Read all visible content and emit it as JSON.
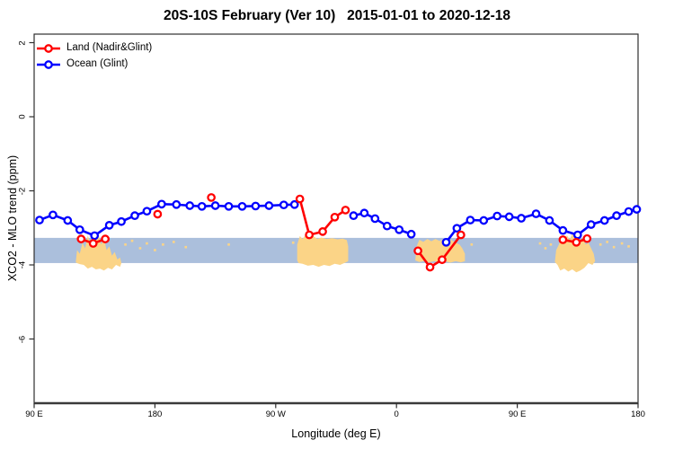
{
  "title": "20S-10S February (Ver 10)   2015-01-01 to 2020-12-18",
  "chart_data": {
    "type": "line",
    "title": "20S-10S February (Ver 10)   2015-01-01 to 2020-12-18",
    "xlabel": "Longitude (deg E)",
    "ylabel": "XCO2 - MLO trend (ppm)",
    "x_axis": {
      "note": "longitude axis starts at 90E and wraps eastward through 180, 90W, 0, 90E to 180; stored x values are degrees east of 90E (0-450)",
      "range_deg": [
        0,
        450
      ],
      "ticks_deg": [
        0,
        90,
        180,
        270,
        360,
        450
      ],
      "tick_labels": [
        "90 E",
        "180",
        "90 W",
        "0",
        "90 E",
        "180"
      ]
    },
    "y_axis": {
      "range": [
        -7.73,
        2.23
      ],
      "ticks": [
        2,
        0,
        -2,
        -4,
        -6
      ],
      "tick_labels": [
        "2",
        "0",
        "-2",
        "-4",
        "-6"
      ]
    },
    "grid": "off",
    "legend_position": "top-left inside, no box",
    "legend": [
      {
        "label": "Land (Nadir&Glint)",
        "color": "#ff0000"
      },
      {
        "label": "Ocean (Glint)",
        "color": "#0000ff"
      }
    ],
    "band": {
      "color": "#abbfdc",
      "y_top": -3.27,
      "y_bottom": -3.95
    },
    "land_fill_color": "#fbd487",
    "series": [
      {
        "name": "Land (Nadir&Glint)",
        "color": "#ff0000",
        "marker": "open-circle",
        "segments": [
          [
            [
              35,
              -3.3
            ],
            [
              44,
              -3.42
            ],
            [
              53,
              -3.3
            ]
          ],
          [
            [
              92,
              -2.63
            ]
          ],
          [
            [
              132,
              -2.18
            ]
          ],
          [
            [
              198,
              -2.22
            ],
            [
              205,
              -3.19
            ],
            [
              215,
              -3.1
            ],
            [
              224,
              -2.71
            ],
            [
              232,
              -2.52
            ]
          ],
          [
            [
              286,
              -3.62
            ],
            [
              295,
              -4.06
            ],
            [
              304,
              -3.86
            ],
            [
              318,
              -3.19
            ]
          ],
          [
            [
              394,
              -3.32
            ],
            [
              404,
              -3.39
            ],
            [
              412,
              -3.29
            ]
          ]
        ]
      },
      {
        "name": "Ocean (Glint)",
        "color": "#0000ff",
        "marker": "open-circle",
        "segments": [
          [
            [
              4,
              -2.79
            ],
            [
              14,
              -2.65
            ],
            [
              25,
              -2.8
            ],
            [
              34,
              -3.05
            ],
            [
              45,
              -3.21
            ],
            [
              56,
              -2.93
            ],
            [
              65,
              -2.83
            ],
            [
              75,
              -2.67
            ],
            [
              84,
              -2.55
            ],
            [
              95,
              -2.36
            ],
            [
              106,
              -2.37
            ],
            [
              116,
              -2.4
            ],
            [
              125,
              -2.42
            ],
            [
              135,
              -2.4
            ],
            [
              145,
              -2.42
            ],
            [
              155,
              -2.42
            ],
            [
              165,
              -2.41
            ],
            [
              175,
              -2.4
            ],
            [
              186,
              -2.38
            ],
            [
              194,
              -2.37
            ]
          ],
          [
            [
              238,
              -2.67
            ],
            [
              246,
              -2.6
            ],
            [
              254,
              -2.75
            ],
            [
              263,
              -2.95
            ],
            [
              272,
              -3.05
            ],
            [
              281,
              -3.17
            ]
          ],
          [
            [
              307,
              -3.39
            ],
            [
              315,
              -3.01
            ],
            [
              325,
              -2.79
            ],
            [
              335,
              -2.8
            ],
            [
              345,
              -2.68
            ],
            [
              354,
              -2.7
            ],
            [
              363,
              -2.74
            ],
            [
              374,
              -2.62
            ],
            [
              384,
              -2.8
            ],
            [
              394,
              -3.07
            ],
            [
              405,
              -3.19
            ],
            [
              415,
              -2.91
            ],
            [
              425,
              -2.8
            ],
            [
              434,
              -2.67
            ],
            [
              443,
              -2.56
            ],
            [
              449,
              -2.5
            ]
          ]
        ]
      }
    ],
    "land_regions": [
      [
        [
          31,
          -3.93
        ],
        [
          32,
          -3.6
        ],
        [
          34,
          -3.7
        ],
        [
          36,
          -3.4
        ],
        [
          38,
          -3.55
        ],
        [
          40,
          -3.2
        ],
        [
          42,
          -3.45
        ],
        [
          44,
          -3.1
        ],
        [
          46,
          -3.35
        ],
        [
          48,
          -3.2
        ],
        [
          50,
          -3.45
        ],
        [
          52,
          -3.3
        ],
        [
          54,
          -3.6
        ],
        [
          56,
          -3.5
        ],
        [
          58,
          -3.75
        ],
        [
          60,
          -3.65
        ],
        [
          62,
          -3.85
        ],
        [
          64,
          -3.8
        ],
        [
          65,
          -3.95
        ],
        [
          64,
          -4.05
        ],
        [
          61,
          -4.0
        ],
        [
          58,
          -4.12
        ],
        [
          55,
          -4.08
        ],
        [
          52,
          -4.15
        ],
        [
          49,
          -4.1
        ],
        [
          46,
          -4.12
        ],
        [
          43,
          -4.05
        ],
        [
          40,
          -4.1
        ],
        [
          37,
          -4.0
        ],
        [
          34,
          -3.98
        ],
        [
          32,
          -3.95
        ]
      ],
      [
        [
          196,
          -3.88
        ],
        [
          196,
          -3.45
        ],
        [
          198,
          -3.22
        ],
        [
          200,
          -3.3
        ],
        [
          202,
          -3.2
        ],
        [
          205,
          -3.28
        ],
        [
          208,
          -3.22
        ],
        [
          211,
          -3.3
        ],
        [
          214,
          -3.26
        ],
        [
          218,
          -3.3
        ],
        [
          222,
          -3.28
        ],
        [
          226,
          -3.31
        ],
        [
          230,
          -3.29
        ],
        [
          233,
          -3.33
        ],
        [
          234,
          -3.5
        ],
        [
          234,
          -3.9
        ],
        [
          231,
          -3.95
        ],
        [
          228,
          -4.0
        ],
        [
          224,
          -3.97
        ],
        [
          220,
          -4.03
        ],
        [
          216,
          -4.0
        ],
        [
          212,
          -4.05
        ],
        [
          208,
          -4.0
        ],
        [
          204,
          -4.02
        ],
        [
          200,
          -3.97
        ],
        [
          197,
          -3.95
        ]
      ],
      [
        [
          284,
          -3.88
        ],
        [
          285,
          -3.5
        ],
        [
          287,
          -3.32
        ],
        [
          290,
          -3.38
        ],
        [
          293,
          -3.3
        ],
        [
          296,
          -3.36
        ],
        [
          299,
          -3.3
        ],
        [
          302,
          -3.35
        ],
        [
          305,
          -3.31
        ],
        [
          308,
          -3.38
        ],
        [
          311,
          -3.33
        ],
        [
          314,
          -3.4
        ],
        [
          317,
          -3.45
        ],
        [
          319,
          -3.55
        ],
        [
          321,
          -3.7
        ],
        [
          321,
          -3.9
        ],
        [
          318,
          -3.93
        ],
        [
          314,
          -3.9
        ],
        [
          310,
          -3.94
        ],
        [
          306,
          -3.9
        ],
        [
          302,
          -3.93
        ],
        [
          298,
          -3.9
        ],
        [
          294,
          -3.93
        ],
        [
          290,
          -3.9
        ],
        [
          287,
          -3.92
        ]
      ],
      [
        [
          388,
          -3.92
        ],
        [
          389,
          -3.6
        ],
        [
          391,
          -3.45
        ],
        [
          393,
          -3.28
        ],
        [
          395,
          -3.38
        ],
        [
          397,
          -3.2
        ],
        [
          399,
          -3.32
        ],
        [
          401,
          -3.15
        ],
        [
          403,
          -3.3
        ],
        [
          405,
          -3.22
        ],
        [
          407,
          -3.35
        ],
        [
          409,
          -3.28
        ],
        [
          411,
          -3.45
        ],
        [
          413,
          -3.4
        ],
        [
          415,
          -3.55
        ],
        [
          417,
          -3.7
        ],
        [
          418,
          -3.9
        ],
        [
          416,
          -4.0
        ],
        [
          413,
          -3.95
        ],
        [
          410,
          -4.08
        ],
        [
          407,
          -4.15
        ],
        [
          404,
          -4.2
        ],
        [
          401,
          -4.12
        ],
        [
          398,
          -4.18
        ],
        [
          395,
          -4.1
        ],
        [
          392,
          -4.15
        ],
        [
          390,
          -4.0
        ]
      ]
    ],
    "land_speckles": [
      [
        68,
        -3.45
      ],
      [
        73,
        -3.35
      ],
      [
        79,
        -3.55
      ],
      [
        84,
        -3.42
      ],
      [
        90,
        -3.6
      ],
      [
        96,
        -3.45
      ],
      [
        104,
        -3.38
      ],
      [
        113,
        -3.52
      ],
      [
        145,
        -3.45
      ],
      [
        193,
        -3.4
      ],
      [
        326,
        -3.45
      ],
      [
        377,
        -3.42
      ],
      [
        381,
        -3.55
      ],
      [
        385,
        -3.45
      ],
      [
        422,
        -3.45
      ],
      [
        427,
        -3.38
      ],
      [
        432,
        -3.52
      ],
      [
        438,
        -3.42
      ],
      [
        443,
        -3.5
      ]
    ]
  }
}
